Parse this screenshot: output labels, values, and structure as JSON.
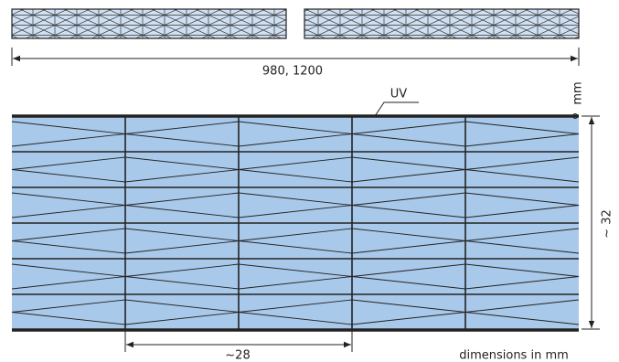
{
  "top_dimension": "980, 1200",
  "uv_label": "UV",
  "unit_mark": "mm",
  "height_dimension": "~ 32",
  "cell_dimension": "~28",
  "note": "dimensions in mm"
}
